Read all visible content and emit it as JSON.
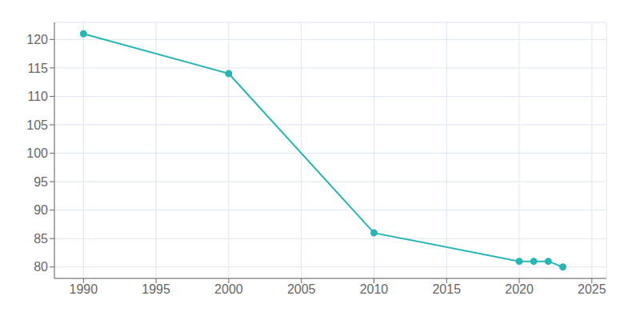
{
  "chart_data": {
    "type": "line",
    "x": [
      1990,
      2000,
      2010,
      2020,
      2021,
      2022,
      2023
    ],
    "values": [
      121,
      114,
      86,
      81,
      81,
      81,
      80
    ],
    "color": "#2ab5b5",
    "marker": "o",
    "xlim": [
      1988,
      2026
    ],
    "ylim": [
      78,
      123
    ],
    "xticks": [
      1990,
      1995,
      2000,
      2005,
      2010,
      2015,
      2020,
      2025
    ],
    "yticks": [
      80,
      85,
      90,
      95,
      100,
      105,
      110,
      115,
      120
    ],
    "grid": true
  }
}
